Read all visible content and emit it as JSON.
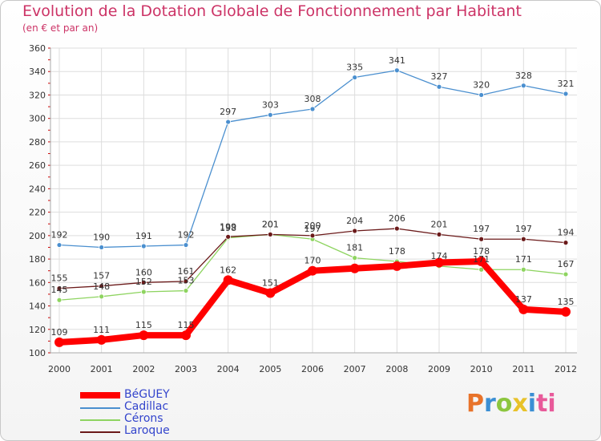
{
  "header": {
    "title": "Evolution de la Dotation Globale de Fonctionnement par Habitant",
    "subtitle": "(en € et par an)"
  },
  "logo": {
    "text": "Proxiti",
    "letters": [
      "P",
      "r",
      "o",
      "x",
      "i",
      "ti"
    ]
  },
  "chart_data": {
    "type": "line",
    "title": "Evolution de la Dotation Globale de Fonctionnement par Habitant",
    "subtitle": "(en € et par an)",
    "x": [
      "2000",
      "2001",
      "2002",
      "2003",
      "2004",
      "2005",
      "2006",
      "2007",
      "2008",
      "2009",
      "2010",
      "2011",
      "2012"
    ],
    "ylim": [
      100,
      360
    ],
    "yticks": [
      100,
      120,
      140,
      160,
      180,
      200,
      220,
      240,
      260,
      280,
      300,
      320,
      340,
      360
    ],
    "grid": true,
    "legend_position": "bottom-left",
    "series": [
      {
        "name": "BéGUEY",
        "color": "#ff0000",
        "values": [
          109,
          111,
          115,
          115,
          162,
          151,
          170,
          172,
          174,
          177,
          178,
          137,
          135
        ],
        "labels": [
          "109",
          "111",
          "115",
          "115",
          "162",
          "151",
          "170",
          "",
          "",
          "",
          "178",
          "137",
          "135"
        ]
      },
      {
        "name": "Cadillac",
        "color": "#4a8fcf",
        "values": [
          192,
          190,
          191,
          192,
          297,
          303,
          308,
          335,
          341,
          327,
          320,
          328,
          321
        ],
        "labels": [
          "192",
          "190",
          "191",
          "192",
          "297",
          "303",
          "308",
          "335",
          "341",
          "327",
          "320",
          "328",
          "321"
        ]
      },
      {
        "name": "Cérons",
        "color": "#8ed460",
        "values": [
          145,
          148,
          152,
          153,
          198,
          201,
          197,
          181,
          178,
          174,
          171,
          171,
          167
        ],
        "labels": [
          "145",
          "148",
          "152",
          "153",
          "198",
          "201",
          "197",
          "181",
          "178",
          "174",
          "171",
          "171",
          "167"
        ]
      },
      {
        "name": "Laroque",
        "color": "#6b1a1a",
        "values": [
          155,
          157,
          160,
          161,
          199,
          201,
          200,
          204,
          206,
          201,
          197,
          197,
          194
        ],
        "labels": [
          "155",
          "157",
          "160",
          "161",
          "199",
          "201",
          "200",
          "204",
          "206",
          "201",
          "197",
          "197",
          "194"
        ]
      }
    ]
  }
}
